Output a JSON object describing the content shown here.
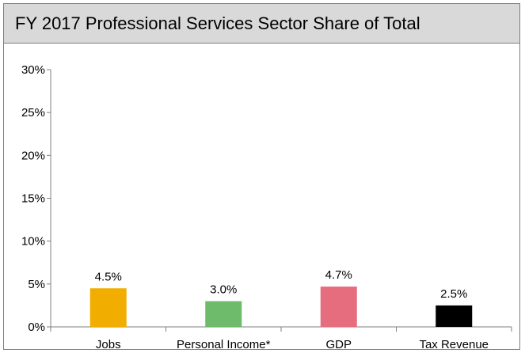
{
  "chart_data": {
    "type": "bar",
    "title": "FY 2017 Professional Services Sector Share of Total",
    "categories": [
      "Jobs",
      "Personal Income*",
      "GDP",
      "Tax Revenue"
    ],
    "values": [
      4.5,
      3.0,
      4.7,
      2.5
    ],
    "data_labels": [
      "4.5%",
      "3.0%",
      "4.7%",
      "2.5%"
    ],
    "bar_colors": [
      "#f2ae00",
      "#6dbb6b",
      "#e66d7d",
      "#000000"
    ],
    "ylim": [
      0,
      30
    ],
    "yticks": [
      0,
      5,
      10,
      15,
      20,
      25,
      30
    ],
    "ytick_labels": [
      "0%",
      "5%",
      "10%",
      "15%",
      "20%",
      "25%",
      "30%"
    ],
    "xlabel": "",
    "ylabel": "",
    "grid": false,
    "legend": "none"
  }
}
